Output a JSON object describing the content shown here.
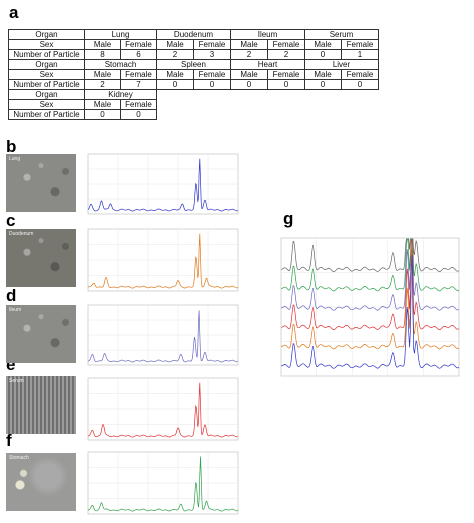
{
  "panel_letters": {
    "a": "a",
    "b": "b",
    "c": "c",
    "d": "d",
    "e": "e",
    "f": "f",
    "g": "g"
  },
  "table": {
    "rows": [
      {
        "type": "organ",
        "label": "Organ",
        "groups": [
          "Lung",
          "Duodenum",
          "Ileum",
          "Serum"
        ]
      },
      {
        "type": "sex",
        "label": "Sex",
        "values": [
          "Male",
          "Female",
          "Male",
          "Female",
          "Male",
          "Female",
          "Male",
          "Female"
        ]
      },
      {
        "type": "count",
        "label": "Number of Particle",
        "values": [
          "8",
          "6",
          "2",
          "3",
          "2",
          "2",
          "0",
          "1"
        ]
      },
      {
        "type": "organ",
        "label": "Organ",
        "groups": [
          "Stomach",
          "Spleen",
          "Heart",
          "Liver"
        ]
      },
      {
        "type": "sex",
        "label": "Sex",
        "values": [
          "Male",
          "Female",
          "Male",
          "Female",
          "Male",
          "Female",
          "Male",
          "Female"
        ]
      },
      {
        "type": "count",
        "label": "Number of Particle",
        "values": [
          "2",
          "7",
          "0",
          "0",
          "0",
          "0",
          "0",
          "0"
        ]
      },
      {
        "type": "organ",
        "label": "Organ",
        "groups": [
          "Kidney"
        ]
      },
      {
        "type": "sex",
        "label": "Sex",
        "values": [
          "Male",
          "Female"
        ]
      },
      {
        "type": "count",
        "label": "Number of Particle",
        "values": [
          "0",
          "0"
        ]
      }
    ]
  },
  "micrographs": [
    {
      "id": "b",
      "label": "Lung",
      "tone": "#8a8a86"
    },
    {
      "id": "c",
      "label": "Duodenum",
      "tone": "#777770"
    },
    {
      "id": "d",
      "label": "Ileum",
      "tone": "#8b8b87"
    },
    {
      "id": "e",
      "label": "Serum",
      "tone": "#8c8c8c"
    },
    {
      "id": "f",
      "label": "Stomach",
      "tone": "#9a9a98"
    }
  ],
  "colors": {
    "lung": "#2a33c8",
    "duodenum": "#e0761a",
    "ileum": "#6a6ac0",
    "serum": "#e03030",
    "stomach": "#2ea04a",
    "reference": "#666666"
  },
  "chart_data": [
    {
      "id": "b",
      "type": "line",
      "series": [
        {
          "color": "#2a33c8",
          "peaks": [
            [
              0.02,
              0.1
            ],
            [
              0.09,
              0.18
            ],
            [
              0.15,
              0.13
            ],
            [
              0.63,
              0.12
            ],
            [
              0.72,
              0.5
            ],
            [
              0.745,
              1.0
            ],
            [
              0.78,
              0.2
            ]
          ]
        }
      ]
    },
    {
      "id": "c",
      "type": "line",
      "series": [
        {
          "color": "#e0761a",
          "peaks": [
            [
              0.04,
              0.08
            ],
            [
              0.12,
              0.16
            ],
            [
              0.6,
              0.12
            ],
            [
              0.72,
              0.55
            ],
            [
              0.745,
              1.0
            ],
            [
              0.79,
              0.18
            ]
          ]
        }
      ]
    },
    {
      "id": "d",
      "type": "line",
      "series": [
        {
          "color": "#6a6ac0",
          "peaks": [
            [
              0.03,
              0.12
            ],
            [
              0.11,
              0.14
            ],
            [
              0.62,
              0.12
            ],
            [
              0.71,
              0.45
            ],
            [
              0.74,
              1.0
            ],
            [
              0.78,
              0.18
            ]
          ]
        }
      ]
    },
    {
      "id": "e",
      "type": "line",
      "series": [
        {
          "color": "#e03030",
          "peaks": [
            [
              0.03,
              0.1
            ],
            [
              0.1,
              0.22
            ],
            [
              0.6,
              0.15
            ],
            [
              0.72,
              0.55
            ],
            [
              0.745,
              1.0
            ],
            [
              0.78,
              0.22
            ]
          ]
        }
      ]
    },
    {
      "id": "f",
      "type": "line",
      "series": [
        {
          "color": "#2ea04a",
          "peaks": [
            [
              0.03,
              0.08
            ],
            [
              0.09,
              0.14
            ],
            [
              0.62,
              0.1
            ],
            [
              0.72,
              0.5
            ],
            [
              0.75,
              1.0
            ],
            [
              0.79,
              0.18
            ]
          ]
        }
      ]
    },
    {
      "id": "g",
      "type": "line",
      "series": [
        {
          "color": "#666666",
          "peaks": [
            [
              0.07,
              0.25
            ],
            [
              0.18,
              0.22
            ],
            [
              0.63,
              0.15
            ],
            [
              0.71,
              0.55
            ],
            [
              0.735,
              1.0
            ],
            [
              0.76,
              0.25
            ]
          ]
        },
        {
          "color": "#2ea04a",
          "peaks": [
            [
              0.07,
              0.2
            ],
            [
              0.18,
              0.18
            ],
            [
              0.63,
              0.12
            ],
            [
              0.71,
              0.5
            ],
            [
              0.735,
              0.9
            ],
            [
              0.76,
              0.22
            ]
          ]
        },
        {
          "color": "#6a6ac0",
          "peaks": [
            [
              0.07,
              0.2
            ],
            [
              0.18,
              0.18
            ],
            [
              0.63,
              0.12
            ],
            [
              0.71,
              0.5
            ],
            [
              0.735,
              0.9
            ],
            [
              0.76,
              0.22
            ]
          ]
        },
        {
          "color": "#e03030",
          "peaks": [
            [
              0.07,
              0.2
            ],
            [
              0.18,
              0.18
            ],
            [
              0.63,
              0.12
            ],
            [
              0.71,
              0.5
            ],
            [
              0.735,
              0.9
            ],
            [
              0.76,
              0.22
            ]
          ]
        },
        {
          "color": "#e0761a",
          "peaks": [
            [
              0.07,
              0.2
            ],
            [
              0.18,
              0.18
            ],
            [
              0.63,
              0.12
            ],
            [
              0.71,
              0.5
            ],
            [
              0.735,
              0.9
            ],
            [
              0.76,
              0.22
            ]
          ]
        },
        {
          "color": "#2a33c8",
          "peaks": [
            [
              0.07,
              0.2
            ],
            [
              0.18,
              0.18
            ],
            [
              0.63,
              0.12
            ],
            [
              0.71,
              0.5
            ],
            [
              0.735,
              1.0
            ],
            [
              0.76,
              0.22
            ]
          ]
        }
      ]
    }
  ]
}
